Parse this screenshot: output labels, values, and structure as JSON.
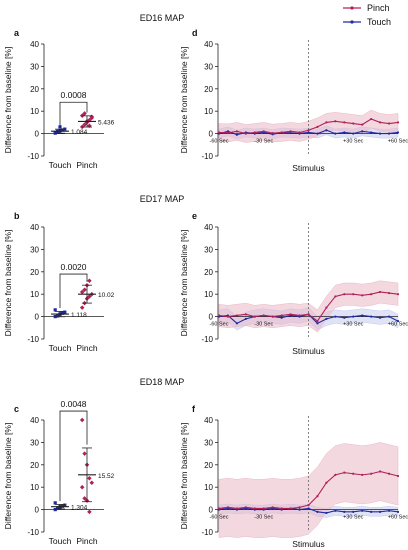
{
  "legend": {
    "position": "top-right",
    "entries": [
      {
        "label": "Pinch",
        "color": "#b0205a"
      },
      {
        "label": "Touch",
        "color": "#1f2aa0"
      }
    ]
  },
  "colors": {
    "pinch": "#b0205a",
    "pinch_band": "#eab8c6",
    "touch": "#1f2aa0",
    "touch_band": "#c7caee",
    "stimulus_line": "#666666"
  },
  "chart_data": [
    {
      "panel": "a",
      "type": "scatter",
      "title": "ED16 MAP",
      "ylabel": "Difference from baseline [%]",
      "ylim": [
        -10,
        40
      ],
      "yticks": [
        -10,
        0,
        10,
        20,
        30,
        40
      ],
      "categories": [
        "Touch",
        "Pinch"
      ],
      "series": [
        {
          "category": "Touch",
          "mean": 1.084,
          "sd": 0.9,
          "mean_label": "1.084",
          "points": [
            0.2,
            0.8,
            1.2,
            1.6,
            2.0,
            0.5,
            1.0,
            3.0
          ]
        },
        {
          "category": "Pinch",
          "mean": 5.436,
          "sd": 2.5,
          "mean_label": "5.436",
          "points": [
            3.0,
            4.0,
            5.0,
            6.0,
            7.0,
            8.0,
            9.0,
            5.5,
            3.5,
            7.5
          ]
        }
      ],
      "significance": {
        "p": "0.0008",
        "y": 14
      }
    },
    {
      "panel": "b",
      "type": "scatter",
      "title": "ED17 MAP",
      "ylabel": "Difference from baseline [%]",
      "ylim": [
        -10,
        40
      ],
      "yticks": [
        -10,
        0,
        10,
        20,
        30,
        40
      ],
      "categories": [
        "Touch",
        "Pinch"
      ],
      "series": [
        {
          "category": "Touch",
          "mean": 1.118,
          "sd": 1.2,
          "mean_label": "1.118",
          "points": [
            0.0,
            0.5,
            1.0,
            1.5,
            2.0,
            3.0,
            0.3,
            1.2
          ]
        },
        {
          "category": "Pinch",
          "mean": 10.02,
          "sd": 4.0,
          "mean_label": "10.02",
          "points": [
            4.0,
            6.0,
            8.0,
            9.0,
            10.0,
            11.0,
            12.0,
            14.0,
            16.0
          ]
        }
      ],
      "significance": {
        "p": "0.0020",
        "y": 19
      }
    },
    {
      "panel": "c",
      "type": "scatter",
      "title": "ED18 MAP",
      "ylabel": "Difference from baseline [%]",
      "ylim": [
        -10,
        40
      ],
      "yticks": [
        -10,
        0,
        10,
        20,
        30,
        40
      ],
      "categories": [
        "Touch",
        "Pinch"
      ],
      "series": [
        {
          "category": "Touch",
          "mean": 1.304,
          "sd": 1.0,
          "mean_label": "1.304",
          "points": [
            0.0,
            0.5,
            1.0,
            1.5,
            2.0,
            3.0,
            0.8,
            1.3
          ]
        },
        {
          "category": "Pinch",
          "mean": 15.52,
          "sd": 12.0,
          "mean_label": "15.52",
          "points": [
            40.0,
            25.0,
            20.0,
            14.0,
            12.0,
            10.0,
            5.0,
            4.0,
            -1.0
          ]
        }
      ],
      "significance": {
        "p": "0.0048",
        "y": 44
      }
    },
    {
      "panel": "d",
      "type": "line",
      "xlabel": "Stimulus",
      "ylabel": "Difference from baseline [%]",
      "ylim": [
        -10,
        40
      ],
      "yticks": [
        -10,
        0,
        10,
        20,
        30,
        40
      ],
      "xlim": [
        -60,
        60
      ],
      "xtick_labels": [
        {
          "x": -60,
          "label": "-60 Sec"
        },
        {
          "x": -30,
          "label": "-30 Sec"
        },
        {
          "x": 30,
          "label": "+30 Sec"
        },
        {
          "x": 60,
          "label": "+60 Sec"
        }
      ],
      "x": [
        -60,
        -54,
        -48,
        -42,
        -36,
        -30,
        -24,
        -18,
        -12,
        -6,
        0,
        6,
        12,
        18,
        24,
        30,
        36,
        42,
        48,
        54,
        60
      ],
      "series": [
        {
          "name": "Pinch",
          "values": [
            0.5,
            0.3,
            1.0,
            0.0,
            0.5,
            1.0,
            0.2,
            0.5,
            1.0,
            0.5,
            1.5,
            3.0,
            5.0,
            5.5,
            5.0,
            4.5,
            4.0,
            6.5,
            5.0,
            4.5,
            5.0
          ],
          "spread": 4.0
        },
        {
          "name": "Touch",
          "values": [
            0.0,
            1.0,
            -0.5,
            0.5,
            0.0,
            0.5,
            -0.3,
            0.5,
            0.3,
            0.0,
            0.5,
            0.0,
            1.5,
            0.0,
            0.5,
            0.0,
            1.0,
            0.5,
            0.0,
            0.0,
            0.5
          ],
          "spread": 2.0
        }
      ]
    },
    {
      "panel": "e",
      "type": "line",
      "xlabel": "Stimulus",
      "ylabel": "Difference from baseline [%]",
      "ylim": [
        -10,
        40
      ],
      "yticks": [
        -10,
        0,
        10,
        20,
        30,
        40
      ],
      "xlim": [
        -60,
        60
      ],
      "xtick_labels": [
        {
          "x": -60,
          "label": "-60 Sec"
        },
        {
          "x": -30,
          "label": "-30 Sec"
        },
        {
          "x": 30,
          "label": "+30 Sec"
        },
        {
          "x": 60,
          "label": "+60 Sec"
        }
      ],
      "x": [
        -60,
        -54,
        -48,
        -42,
        -36,
        -30,
        -24,
        -18,
        -12,
        -6,
        0,
        6,
        12,
        18,
        24,
        30,
        36,
        42,
        48,
        54,
        60
      ],
      "series": [
        {
          "name": "Pinch",
          "values": [
            0.5,
            0.0,
            0.5,
            1.0,
            0.0,
            0.5,
            0.0,
            0.5,
            1.0,
            0.5,
            1.0,
            -2.0,
            4.0,
            9.0,
            10.0,
            10.0,
            9.5,
            10.0,
            11.0,
            10.5,
            10.0
          ],
          "spread": 5.0
        },
        {
          "name": "Touch",
          "values": [
            0.0,
            0.5,
            -3.0,
            -1.0,
            0.0,
            0.5,
            0.0,
            -0.5,
            0.5,
            0.0,
            1.0,
            -3.0,
            -1.0,
            0.0,
            -0.5,
            0.0,
            0.5,
            0.0,
            -0.5,
            0.0,
            -2.0
          ],
          "spread": 3.0
        }
      ]
    },
    {
      "panel": "f",
      "type": "line",
      "xlabel": "Stimulus",
      "ylabel": "Difference from baseline [%]",
      "ylim": [
        -10,
        40
      ],
      "yticks": [
        -10,
        0,
        10,
        20,
        30,
        40
      ],
      "xlim": [
        -60,
        60
      ],
      "xtick_labels": [
        {
          "x": -60,
          "label": "-60 Sec"
        },
        {
          "x": -30,
          "label": "-30 Sec"
        },
        {
          "x": 30,
          "label": "+30 Sec"
        },
        {
          "x": 60,
          "label": "+60 Sec"
        }
      ],
      "x": [
        -60,
        -54,
        -48,
        -42,
        -36,
        -30,
        -24,
        -18,
        -12,
        -6,
        0,
        6,
        12,
        18,
        24,
        30,
        36,
        42,
        48,
        54,
        60
      ],
      "series": [
        {
          "name": "Pinch",
          "values": [
            0.5,
            1.0,
            0.5,
            1.0,
            0.5,
            0.5,
            1.0,
            0.5,
            0.5,
            1.0,
            2.0,
            6.0,
            12.0,
            15.5,
            16.5,
            16.0,
            15.5,
            16.0,
            17.0,
            16.0,
            15.0
          ],
          "spread": 13.0
        },
        {
          "name": "Touch",
          "values": [
            0.0,
            0.5,
            0.0,
            0.5,
            0.0,
            0.0,
            0.5,
            0.0,
            0.5,
            0.0,
            0.5,
            -1.0,
            -1.5,
            -0.5,
            -1.0,
            -1.0,
            -0.5,
            -1.0,
            -1.0,
            -0.5,
            -1.0
          ],
          "spread": 2.0
        }
      ]
    }
  ]
}
